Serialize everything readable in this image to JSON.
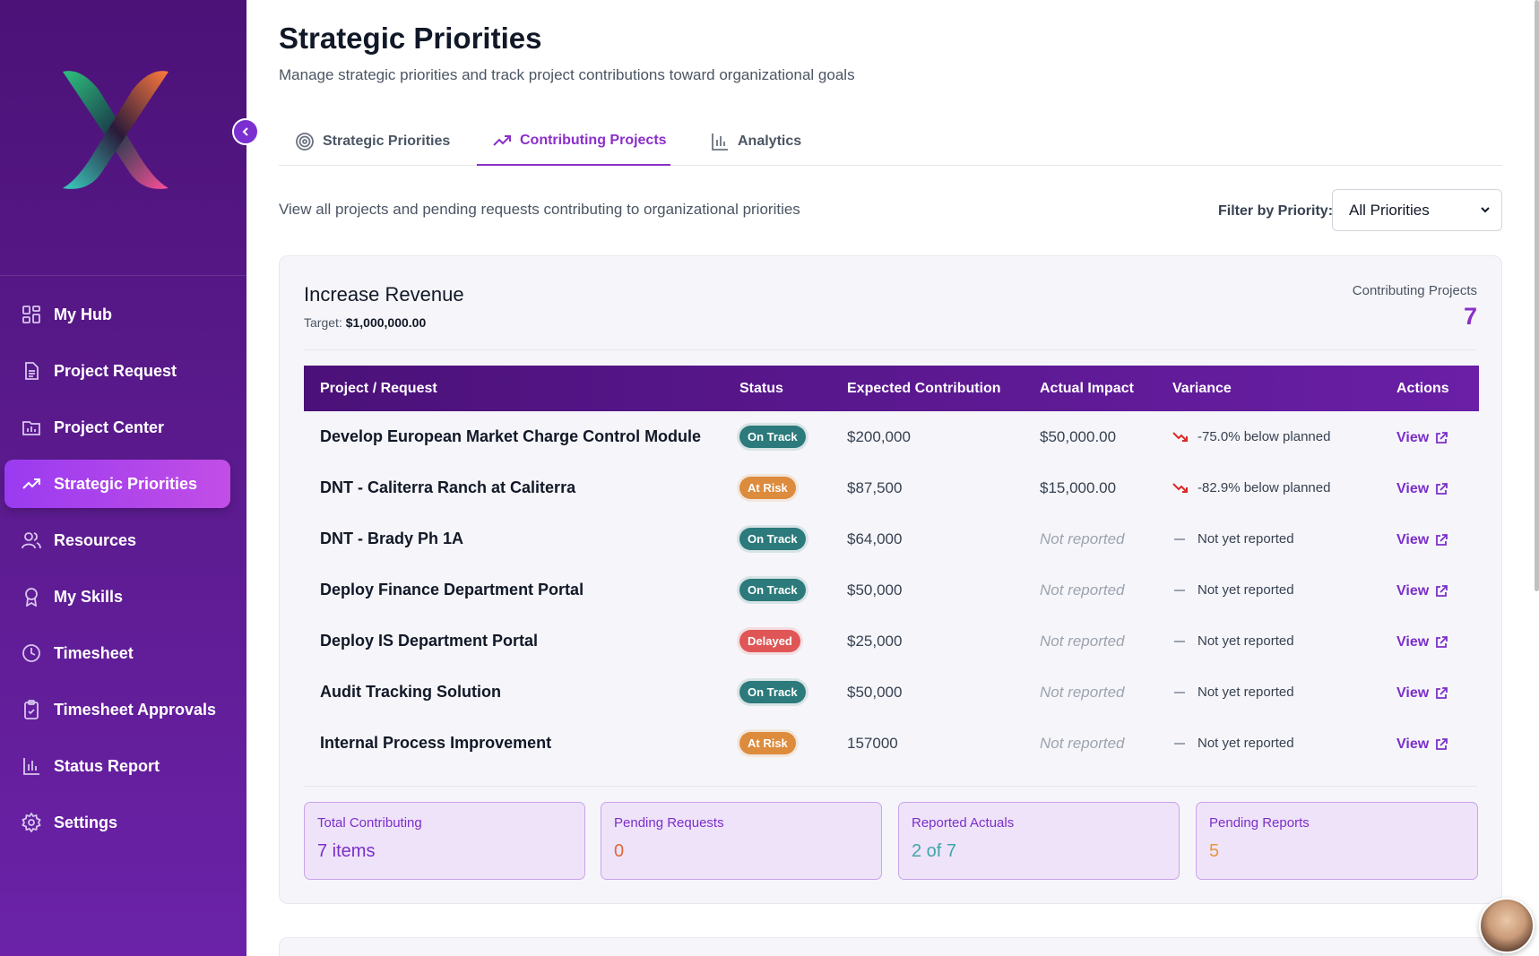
{
  "sidebar": {
    "items": [
      {
        "label": "My Hub",
        "icon": "grid-icon"
      },
      {
        "label": "Project Request",
        "icon": "document-icon"
      },
      {
        "label": "Project Center",
        "icon": "folder-chart-icon"
      },
      {
        "label": "Strategic Priorities",
        "icon": "trending-up-icon",
        "active": true
      },
      {
        "label": "Resources",
        "icon": "users-icon"
      },
      {
        "label": "My Skills",
        "icon": "award-icon"
      },
      {
        "label": "Timesheet",
        "icon": "clock-icon"
      },
      {
        "label": "Timesheet Approvals",
        "icon": "clipboard-check-icon"
      },
      {
        "label": "Status Report",
        "icon": "bar-chart-icon"
      },
      {
        "label": "Settings",
        "icon": "gear-icon"
      }
    ]
  },
  "header": {
    "title": "Strategic Priorities",
    "subtitle": "Manage strategic priorities and track project contributions toward organizational goals"
  },
  "tabs": [
    {
      "label": "Strategic Priorities",
      "icon": "target-icon"
    },
    {
      "label": "Contributing Projects",
      "icon": "trending-up-icon",
      "active": true
    },
    {
      "label": "Analytics",
      "icon": "bar-chart-icon"
    }
  ],
  "view": {
    "description": "View all projects and pending requests contributing to organizational priorities",
    "filter_label": "Filter by Priority:",
    "filter_value": "All Priorities"
  },
  "priority": {
    "title": "Increase Revenue",
    "target_label": "Target:",
    "target_value": "$1,000,000.00",
    "contributing_label": "Contributing Projects",
    "contributing_count": "7",
    "columns": [
      "Project / Request",
      "Status",
      "Expected Contribution",
      "Actual Impact",
      "Variance",
      "Actions"
    ],
    "rows": [
      {
        "name": "Develop European Market Charge Control Module",
        "status": "On Track",
        "expected": "$200,000",
        "actual": "$50,000.00",
        "variance": "-75.0% below planned",
        "action": "View"
      },
      {
        "name": "DNT - Caliterra Ranch at Caliterra",
        "status": "At Risk",
        "expected": "$87,500",
        "actual": "$15,000.00",
        "variance": "-82.9% below planned",
        "action": "View"
      },
      {
        "name": "DNT - Brady Ph 1A",
        "status": "On Track",
        "expected": "$64,000",
        "actual": "Not reported",
        "variance": "Not yet reported",
        "action": "View"
      },
      {
        "name": "Deploy Finance Department Portal",
        "status": "On Track",
        "expected": "$50,000",
        "actual": "Not reported",
        "variance": "Not yet reported",
        "action": "View"
      },
      {
        "name": "Deploy IS Department Portal",
        "status": "Delayed",
        "expected": "$25,000",
        "actual": "Not reported",
        "variance": "Not yet reported",
        "action": "View"
      },
      {
        "name": "Audit Tracking Solution",
        "status": "On Track",
        "expected": "$50,000",
        "actual": "Not reported",
        "variance": "Not yet reported",
        "action": "View"
      },
      {
        "name": "Internal Process Improvement",
        "status": "At Risk",
        "expected": "157000",
        "actual": "Not reported",
        "variance": "Not yet reported",
        "action": "View"
      }
    ],
    "stats": [
      {
        "label": "Total Contributing",
        "value": "7 items",
        "color": "#7b2fc9"
      },
      {
        "label": "Pending Requests",
        "value": "0",
        "color": "#e0673a"
      },
      {
        "label": "Reported Actuals",
        "value": "2 of 7",
        "color": "#3fa6a8"
      },
      {
        "label": "Pending Reports",
        "value": "5",
        "color": "#e8963a"
      }
    ]
  },
  "colors": {
    "accent": "#8b2fc9",
    "on_track": "#2c7a7b",
    "at_risk": "#dd8b3c",
    "delayed": "#e05656"
  }
}
